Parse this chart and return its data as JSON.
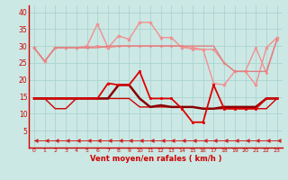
{
  "xlabel": "Vent moyen/en rafales ( km/h )",
  "background_color": "#cce8e4",
  "grid_color": "#aad4d0",
  "x": [
    0,
    1,
    2,
    3,
    4,
    5,
    6,
    7,
    8,
    9,
    10,
    11,
    12,
    13,
    14,
    15,
    16,
    17,
    18,
    19,
    20,
    21,
    22,
    23
  ],
  "lines": [
    {
      "y": [
        29.5,
        25.5,
        29.5,
        29.5,
        29.5,
        29.5,
        30,
        29.5,
        30,
        30,
        30,
        30,
        30,
        30,
        30,
        29,
        29,
        29,
        25,
        22.5,
        22.5,
        29.5,
        22,
        32
      ],
      "color": "#f09090",
      "lw": 1.0,
      "marker": "s",
      "ms": 2.0,
      "zorder": 2
    },
    {
      "y": [
        29.5,
        25.5,
        29.5,
        29.5,
        29.5,
        30,
        36.5,
        29.5,
        33,
        32,
        37,
        37,
        32.5,
        32.5,
        29.5,
        29.5,
        29,
        19,
        18.5,
        22.5,
        22.5,
        18.5,
        29.5,
        32.5
      ],
      "color": "#f09090",
      "lw": 1.0,
      "marker": "*",
      "ms": 3.0,
      "zorder": 2
    },
    {
      "y": [
        29.5,
        25.5,
        29.5,
        29.5,
        29.5,
        29.5,
        29.5,
        30,
        30,
        30,
        30,
        30,
        30,
        30,
        30,
        30,
        30,
        30,
        25,
        22.5,
        22.5,
        22.5,
        22.5,
        32
      ],
      "color": "#e08080",
      "lw": 1.0,
      "marker": null,
      "ms": 0,
      "zorder": 2
    },
    {
      "y": [
        14.5,
        14.5,
        14.5,
        14.5,
        14.5,
        14.5,
        14.5,
        19,
        18.5,
        18.5,
        22.5,
        14.5,
        14.5,
        14.5,
        11.5,
        7.5,
        7.5,
        18.5,
        11.5,
        11.5,
        11.5,
        11.5,
        14.5,
        14.5
      ],
      "color": "#dd0000",
      "lw": 1.3,
      "marker": "s",
      "ms": 2.0,
      "zorder": 4
    },
    {
      "y": [
        14.5,
        14.5,
        11.5,
        11.5,
        14.5,
        14.5,
        14.5,
        14.5,
        14.5,
        14.5,
        12,
        12,
        12,
        12,
        12,
        12,
        11.5,
        11.5,
        11.5,
        11.5,
        11.5,
        11.5,
        11.5,
        14.5
      ],
      "color": "#cc0000",
      "lw": 1.0,
      "marker": null,
      "ms": 0,
      "zorder": 3
    },
    {
      "y": [
        14.5,
        14.5,
        14.5,
        14.5,
        14.5,
        14.5,
        14.5,
        14.5,
        18.5,
        18.5,
        14.5,
        12,
        12.5,
        12,
        12,
        12,
        11.5,
        11.5,
        12,
        12,
        12,
        12,
        14.5,
        14.5
      ],
      "color": "#880000",
      "lw": 1.8,
      "marker": null,
      "ms": 0,
      "zorder": 3
    },
    {
      "y": [
        2,
        2,
        2,
        2,
        2,
        2,
        2,
        2,
        2,
        2,
        2,
        2,
        2,
        2,
        2,
        2,
        2,
        2,
        2,
        2,
        2,
        2,
        2,
        2
      ],
      "color": "#cc2222",
      "lw": 0.7,
      "marker": 4,
      "ms": 3.5,
      "zorder": 5
    }
  ],
  "ylim": [
    0,
    42
  ],
  "yticks": [
    5,
    10,
    15,
    20,
    25,
    30,
    35,
    40
  ],
  "xticks": [
    0,
    1,
    2,
    3,
    4,
    5,
    6,
    7,
    8,
    9,
    10,
    11,
    12,
    13,
    14,
    15,
    16,
    17,
    18,
    19,
    20,
    21,
    22,
    23
  ]
}
